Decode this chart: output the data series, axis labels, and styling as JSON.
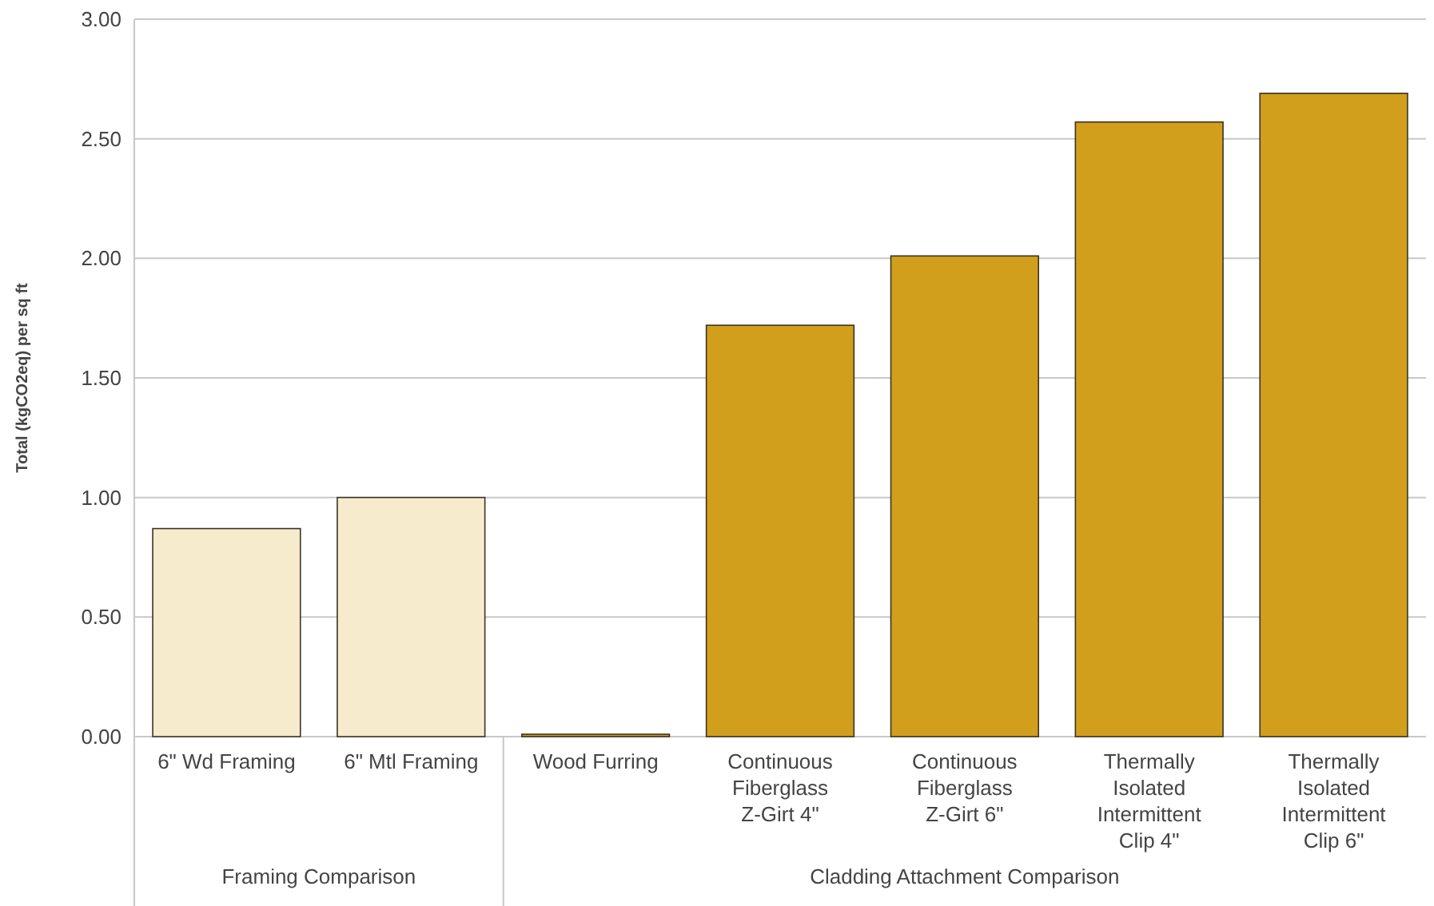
{
  "chart_data": {
    "type": "bar",
    "ylabel": "Total (kgCO2eq) per sq ft",
    "categories": [
      "6\" Wd Framing",
      "6\" Mtl Framing",
      "Wood Furring",
      "Continuous Fiberglass Z-Girt 4\"",
      "Continuous Fiberglass Z-Girt 6\"",
      "Thermally Isolated Intermittent Clip 4\"",
      "Thermally Isolated Intermittent Clip 6\""
    ],
    "values": [
      0.87,
      1.0,
      0.01,
      1.72,
      2.01,
      2.57,
      2.69
    ],
    "colors": [
      "#f7ebcd",
      "#f7ebcd",
      "#d19f1c",
      "#d19f1c",
      "#d19f1c",
      "#d19f1c",
      "#d19f1c"
    ],
    "ylim": [
      0,
      3
    ],
    "yticks": [
      {
        "value": 0,
        "label": "0.00"
      },
      {
        "value": 0.5,
        "label": "0.50"
      },
      {
        "value": 1,
        "label": "1.00"
      },
      {
        "value": 1.5,
        "label": "1.50"
      },
      {
        "value": 2,
        "label": "2.00"
      },
      {
        "value": 2.5,
        "label": "2.50"
      },
      {
        "value": 3,
        "label": "3.00"
      }
    ],
    "grid": "y",
    "annotations": [
      "Framing Comparison",
      "Cladding Attachment Comparison"
    ]
  }
}
